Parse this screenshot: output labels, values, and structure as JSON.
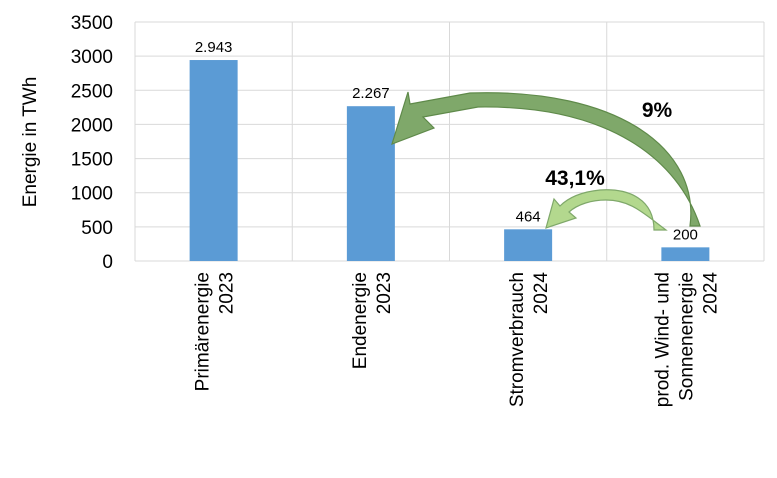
{
  "chart_data": {
    "type": "bar",
    "ylabel": "Energie in TWh",
    "ylim": [
      0,
      3500
    ],
    "yticks": [
      0,
      500,
      1000,
      1500,
      2000,
      2500,
      3000,
      3500
    ],
    "grid": true,
    "categories": [
      [
        "Primärenergie",
        "2023"
      ],
      [
        "Endenergie",
        "2023"
      ],
      [
        "Stromverbrauch",
        "2024"
      ],
      [
        "prod. Wind- und",
        "Sonnenenergie",
        "2024"
      ]
    ],
    "values": [
      2943,
      2267,
      464,
      200
    ],
    "value_labels": [
      "2.943",
      "2.267",
      "464",
      "200"
    ],
    "bar_color": "#5b9bd5",
    "annotations": [
      {
        "text": "9%",
        "from_category": 3,
        "to_category": 1,
        "color": "#7fa86a"
      },
      {
        "text": "43,1%",
        "from_category": 3,
        "to_category": 2,
        "color": "#b3d88e"
      }
    ]
  }
}
